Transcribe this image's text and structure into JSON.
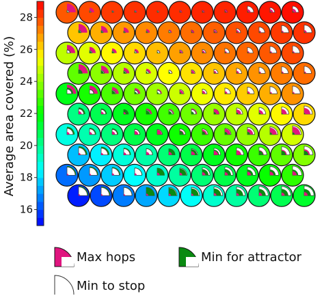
{
  "chart_data": {
    "type": "heatmap",
    "ylabel": "Average area covered (%)",
    "colorbar": {
      "min": 15.0,
      "max": 29.0,
      "ticks": [
        16,
        18,
        20,
        22,
        24,
        26,
        28
      ],
      "tick_labels": [
        "16",
        "18",
        "20",
        "22",
        "24",
        "26",
        "28"
      ]
    },
    "legend": [
      {
        "label": "Max hops",
        "color": "#e0157f",
        "glyph": "quarter-filled"
      },
      {
        "label": "Min for attractor",
        "color": "#0a8a12",
        "glyph": "quarter-filled"
      },
      {
        "label": "Min to stop",
        "color": "#ffffff",
        "glyph": "quarter-outline"
      }
    ],
    "rows": [
      [
        {
          "v": 27.8,
          "m": 0.85,
          "a": 0.1,
          "s": 0.2
        },
        {
          "v": 28.0,
          "m": 0.45,
          "a": 0.1,
          "s": 0.15
        },
        {
          "v": 28.2,
          "m": 0.2,
          "a": 0.1,
          "s": 0.15
        },
        {
          "v": 28.3,
          "m": 0.25,
          "a": 0.1,
          "s": 0.15
        },
        {
          "v": 28.4,
          "m": 0.2,
          "a": 0.1,
          "s": 0.15
        },
        {
          "v": 28.4,
          "m": 0.2,
          "a": 0.1,
          "s": 0.2
        },
        {
          "v": 28.5,
          "m": 0.2,
          "a": 0.1,
          "s": 0.2
        },
        {
          "v": 28.5,
          "m": 0.25,
          "a": 0.1,
          "s": 0.25
        },
        {
          "v": 28.6,
          "m": 0.3,
          "a": 0.1,
          "s": 0.6
        },
        {
          "v": 28.7,
          "m": 0.3,
          "a": 0.1,
          "s": 0.45
        },
        {
          "v": 28.8,
          "m": 0.35,
          "a": 0.1,
          "s": 0.6
        }
      ],
      [
        {
          "v": 26.3,
          "m": 0.85,
          "a": 0.2,
          "s": 0.25
        },
        {
          "v": 26.6,
          "m": 0.65,
          "a": 0.15,
          "s": 0.2
        },
        {
          "v": 26.9,
          "m": 0.5,
          "a": 0.1,
          "s": 0.15
        },
        {
          "v": 27.1,
          "m": 0.35,
          "a": 0.1,
          "s": 0.15
        },
        {
          "v": 27.3,
          "m": 0.3,
          "a": 0.1,
          "s": 0.2
        },
        {
          "v": 27.5,
          "m": 0.25,
          "a": 0.1,
          "s": 0.25
        },
        {
          "v": 27.7,
          "m": 0.25,
          "a": 0.1,
          "s": 0.3
        },
        {
          "v": 27.9,
          "m": 0.25,
          "a": 0.1,
          "s": 0.4
        },
        {
          "v": 28.0,
          "m": 0.2,
          "a": 0.1,
          "s": 0.55
        },
        {
          "v": 28.2,
          "m": 0.2,
          "a": 0.1,
          "s": 0.7
        },
        {
          "v": 28.3,
          "m": 0.25,
          "a": 0.1,
          "s": 0.75
        }
      ],
      [
        {
          "v": 24.6,
          "m": 0.8,
          "a": 0.35,
          "s": 0.3
        },
        {
          "v": 25.1,
          "m": 0.6,
          "a": 0.2,
          "s": 0.25
        },
        {
          "v": 25.6,
          "m": 0.45,
          "a": 0.15,
          "s": 0.2
        },
        {
          "v": 26.0,
          "m": 0.4,
          "a": 0.1,
          "s": 0.2
        },
        {
          "v": 26.4,
          "m": 0.3,
          "a": 0.1,
          "s": 0.25
        },
        {
          "v": 26.8,
          "m": 0.25,
          "a": 0.1,
          "s": 0.3
        },
        {
          "v": 27.1,
          "m": 0.25,
          "a": 0.1,
          "s": 0.35
        },
        {
          "v": 27.4,
          "m": 0.2,
          "a": 0.1,
          "s": 0.45
        },
        {
          "v": 27.6,
          "m": 0.2,
          "a": 0.1,
          "s": 0.55
        },
        {
          "v": 27.8,
          "m": 0.2,
          "a": 0.1,
          "s": 0.65
        },
        {
          "v": 28.0,
          "m": 0.2,
          "a": 0.1,
          "s": 0.7
        }
      ],
      [
        {
          "v": 23.3,
          "m": 0.9,
          "a": 0.35,
          "s": 0.35
        },
        {
          "v": 23.9,
          "m": 0.75,
          "a": 0.25,
          "s": 0.3
        },
        {
          "v": 24.5,
          "m": 0.55,
          "a": 0.2,
          "s": 0.25
        },
        {
          "v": 25.0,
          "m": 0.45,
          "a": 0.15,
          "s": 0.25
        },
        {
          "v": 25.5,
          "m": 0.35,
          "a": 0.15,
          "s": 0.3
        },
        {
          "v": 25.9,
          "m": 0.3,
          "a": 0.1,
          "s": 0.35
        },
        {
          "v": 26.3,
          "m": 0.25,
          "a": 0.1,
          "s": 0.4
        },
        {
          "v": 26.7,
          "m": 0.25,
          "a": 0.1,
          "s": 0.5
        },
        {
          "v": 27.0,
          "m": 0.2,
          "a": 0.1,
          "s": 0.6
        },
        {
          "v": 27.3,
          "m": 0.2,
          "a": 0.1,
          "s": 0.65
        },
        {
          "v": 27.5,
          "m": 0.2,
          "a": 0.1,
          "s": 0.7
        }
      ],
      [
        {
          "v": 21.7,
          "m": 0.9,
          "a": 0.6,
          "s": 0.45
        },
        {
          "v": 22.3,
          "m": 0.8,
          "a": 0.45,
          "s": 0.4
        },
        {
          "v": 23.0,
          "m": 0.65,
          "a": 0.3,
          "s": 0.35
        },
        {
          "v": 23.6,
          "m": 0.55,
          "a": 0.2,
          "s": 0.35
        },
        {
          "v": 24.2,
          "m": 0.45,
          "a": 0.15,
          "s": 0.35
        },
        {
          "v": 24.8,
          "m": 0.35,
          "a": 0.15,
          "s": 0.4
        },
        {
          "v": 25.3,
          "m": 0.3,
          "a": 0.1,
          "s": 0.45
        },
        {
          "v": 25.8,
          "m": 0.25,
          "a": 0.1,
          "s": 0.55
        },
        {
          "v": 26.2,
          "m": 0.25,
          "a": 0.1,
          "s": 0.65
        },
        {
          "v": 26.6,
          "m": 0.2,
          "a": 0.1,
          "s": 0.7
        },
        {
          "v": 27.0,
          "m": 0.2,
          "a": 0.1,
          "s": 0.75
        }
      ],
      [
        {
          "v": 20.2,
          "m": 0.3,
          "a": 0.65,
          "s": 0.5
        },
        {
          "v": 20.9,
          "m": 0.25,
          "a": 0.55,
          "s": 0.45
        },
        {
          "v": 21.6,
          "m": 0.2,
          "a": 0.45,
          "s": 0.45
        },
        {
          "v": 22.3,
          "m": 0.55,
          "a": 0.35,
          "s": 0.4
        },
        {
          "v": 22.9,
          "m": 0.5,
          "a": 0.3,
          "s": 0.4
        },
        {
          "v": 23.5,
          "m": 0.55,
          "a": 0.25,
          "s": 0.45
        },
        {
          "v": 24.1,
          "m": 0.5,
          "a": 0.2,
          "s": 0.5
        },
        {
          "v": 24.6,
          "m": 0.45,
          "a": 0.15,
          "s": 0.6
        },
        {
          "v": 25.1,
          "m": 0.4,
          "a": 0.15,
          "s": 0.65
        },
        {
          "v": 25.6,
          "m": 0.5,
          "a": 0.1,
          "s": 0.7
        },
        {
          "v": 26.0,
          "m": 0.6,
          "a": 0.1,
          "s": 0.8
        }
      ],
      [
        {
          "v": 18.9,
          "m": 0.25,
          "a": 0.75,
          "s": 0.6
        },
        {
          "v": 19.6,
          "m": 0.25,
          "a": 0.65,
          "s": 0.55
        },
        {
          "v": 20.3,
          "m": 0.3,
          "a": 0.6,
          "s": 0.5
        },
        {
          "v": 21.0,
          "m": 0.35,
          "a": 0.55,
          "s": 0.5
        },
        {
          "v": 21.6,
          "m": 0.45,
          "a": 0.45,
          "s": 0.5
        },
        {
          "v": 22.2,
          "m": 0.4,
          "a": 0.35,
          "s": 0.55
        },
        {
          "v": 22.8,
          "m": 0.45,
          "a": 0.3,
          "s": 0.55
        },
        {
          "v": 23.4,
          "m": 0.55,
          "a": 0.25,
          "s": 0.6
        },
        {
          "v": 24.0,
          "m": 0.55,
          "a": 0.25,
          "s": 0.7
        },
        {
          "v": 24.5,
          "m": 0.65,
          "a": 0.2,
          "s": 0.75
        },
        {
          "v": 24.9,
          "m": 0.75,
          "a": 0.2,
          "s": 0.85
        }
      ],
      [
        {
          "v": 17.6,
          "m": 0.2,
          "a": 0.85,
          "s": 0.7
        },
        {
          "v": 18.3,
          "m": 0.2,
          "a": 0.8,
          "s": 0.65
        },
        {
          "v": 19.0,
          "m": 0.25,
          "a": 0.7,
          "s": 0.6
        },
        {
          "v": 19.7,
          "m": 0.3,
          "a": 0.65,
          "s": 0.6
        },
        {
          "v": 20.4,
          "m": 0.3,
          "a": 0.6,
          "s": 0.6
        },
        {
          "v": 21.0,
          "m": 0.35,
          "a": 0.55,
          "s": 0.6
        },
        {
          "v": 21.6,
          "m": 0.4,
          "a": 0.5,
          "s": 0.65
        },
        {
          "v": 22.2,
          "m": 0.45,
          "a": 0.45,
          "s": 0.7
        },
        {
          "v": 22.8,
          "m": 0.45,
          "a": 0.4,
          "s": 0.75
        },
        {
          "v": 23.3,
          "m": 0.5,
          "a": 0.4,
          "s": 0.8
        },
        {
          "v": 23.8,
          "m": 0.55,
          "a": 0.4,
          "s": 0.85
        }
      ],
      [
        {
          "v": 16.5,
          "m": 0.15,
          "a": 0.9,
          "s": 0.8
        },
        {
          "v": 17.1,
          "m": 0.15,
          "a": 0.85,
          "s": 0.75
        },
        {
          "v": 17.8,
          "m": 0.2,
          "a": 0.8,
          "s": 0.7
        },
        {
          "v": 18.5,
          "m": 0.2,
          "a": 0.75,
          "s": 0.7
        },
        {
          "v": 19.2,
          "m": 0.25,
          "a": 0.7,
          "s": 0.7
        },
        {
          "v": 19.8,
          "m": 0.25,
          "a": 0.65,
          "s": 0.7
        },
        {
          "v": 20.4,
          "m": 0.3,
          "a": 0.6,
          "s": 0.75
        },
        {
          "v": 21.0,
          "m": 0.3,
          "a": 0.6,
          "s": 0.8
        },
        {
          "v": 21.6,
          "m": 0.35,
          "a": 0.55,
          "s": 0.8
        },
        {
          "v": 22.1,
          "m": 0.35,
          "a": 0.55,
          "s": 0.85
        },
        {
          "v": 22.6,
          "m": 0.4,
          "a": 0.55,
          "s": 0.9
        }
      ],
      [
        {
          "v": 15.4,
          "m": 0.15,
          "a": 0.95,
          "s": 0.85
        },
        {
          "v": 16.0,
          "m": 0.15,
          "a": 0.9,
          "s": 0.8
        },
        {
          "v": 16.7,
          "m": 0.15,
          "a": 0.85,
          "s": 0.8
        },
        {
          "v": 17.3,
          "m": 0.2,
          "a": 0.8,
          "s": 0.8
        },
        {
          "v": 18.0,
          "m": 0.2,
          "a": 0.75,
          "s": 0.8
        },
        {
          "v": 18.6,
          "m": 0.2,
          "a": 0.7,
          "s": 0.8
        },
        {
          "v": 19.2,
          "m": 0.25,
          "a": 0.7,
          "s": 0.85
        },
        {
          "v": 19.8,
          "m": 0.25,
          "a": 0.65,
          "s": 0.85
        },
        {
          "v": 20.4,
          "m": 0.3,
          "a": 0.65,
          "s": 0.9
        },
        {
          "v": 20.9,
          "m": 0.3,
          "a": 0.65,
          "s": 0.9
        },
        {
          "v": 21.4,
          "m": 0.35,
          "a": 0.65,
          "s": 0.95
        }
      ]
    ]
  }
}
